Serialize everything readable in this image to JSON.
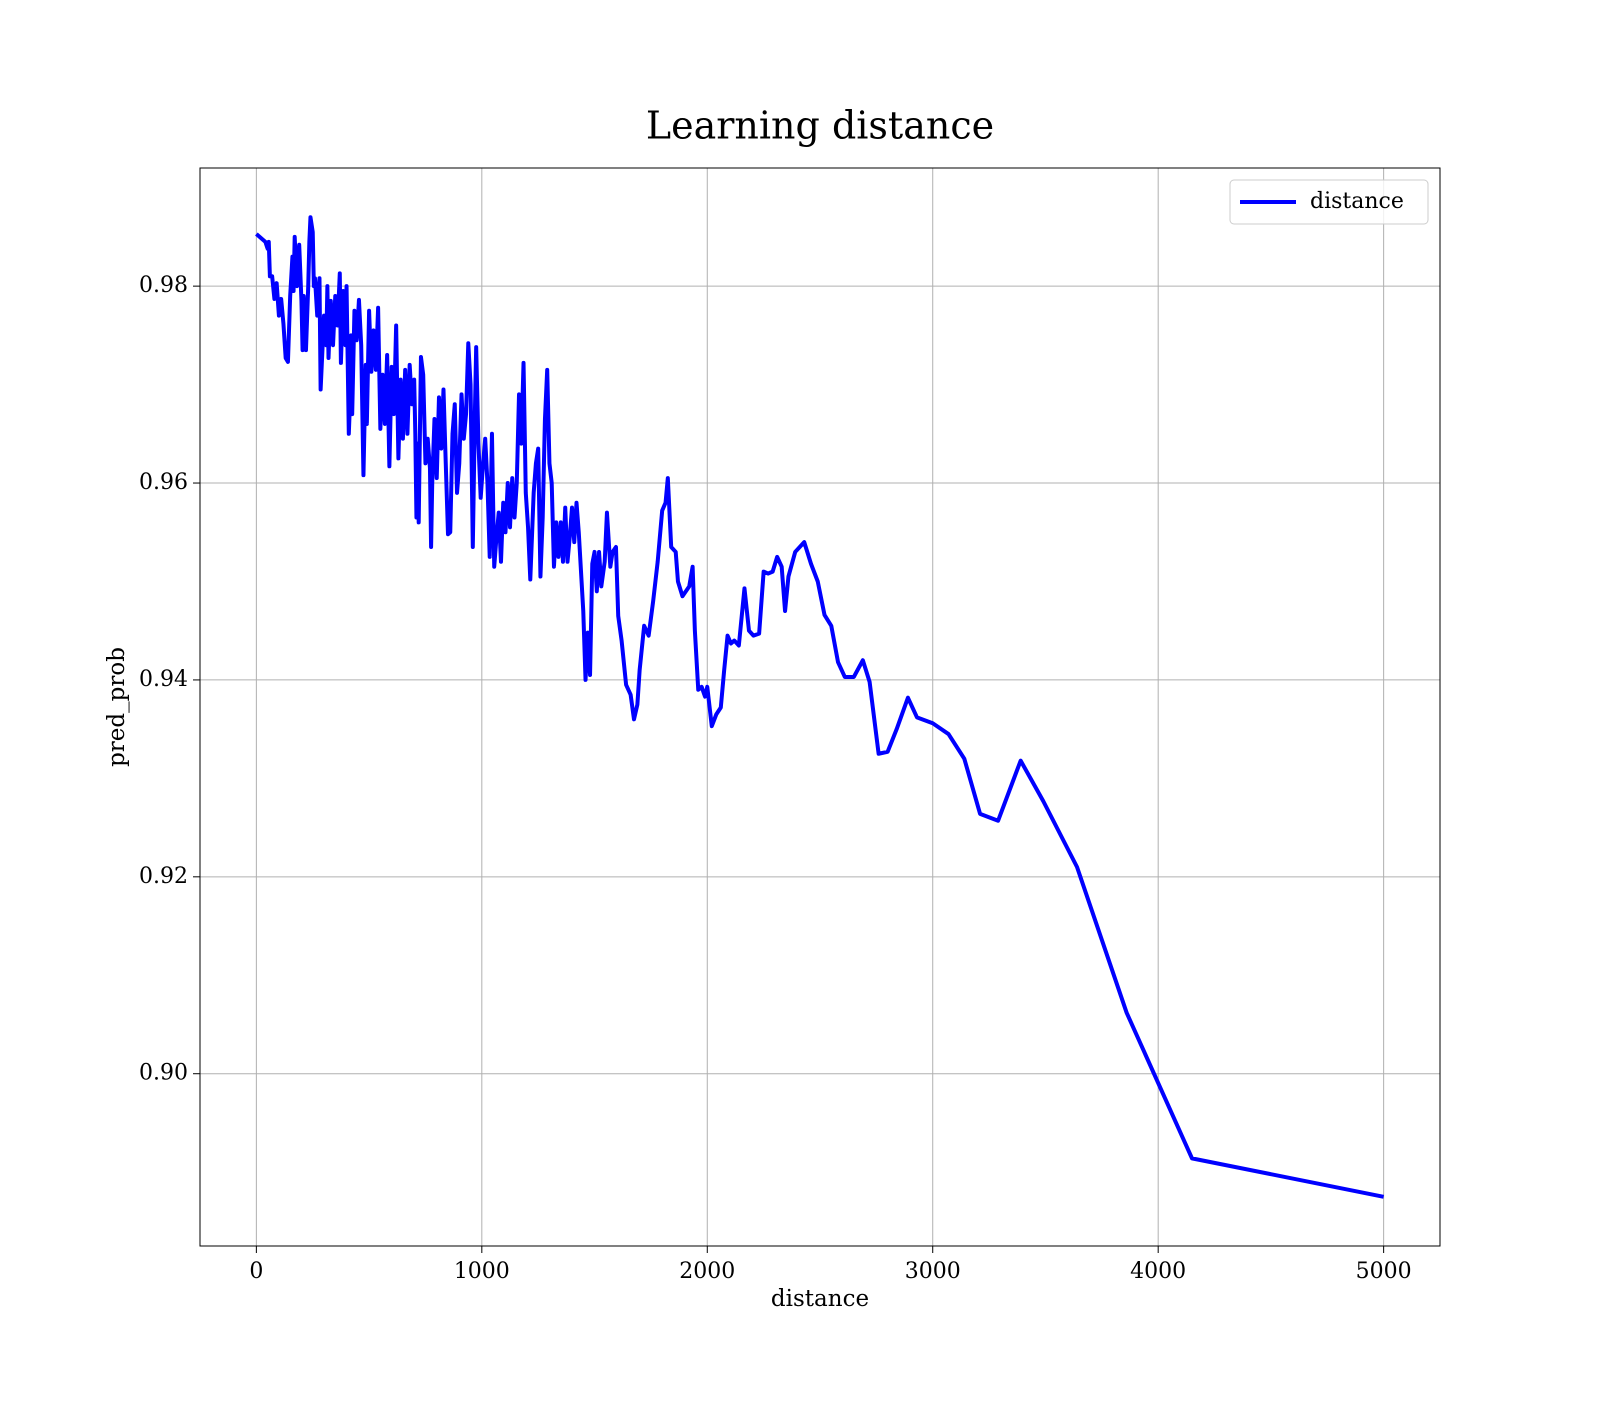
{
  "chart_data": {
    "type": "line",
    "title": "Learning distance",
    "x_label": "distance",
    "y_label": "pred_prob",
    "xlim": [
      -250,
      5250
    ],
    "ylim": [
      0.8825,
      0.992
    ],
    "xticks": [
      0,
      1000,
      2000,
      3000,
      4000,
      5000
    ],
    "yticks": [
      {
        "value": 0.9,
        "label": "0.90"
      },
      0.92,
      0.94,
      0.96,
      0.98
    ],
    "grid": true,
    "legend": "upper right",
    "x": [
      0,
      40,
      50,
      55,
      60,
      70,
      80,
      90,
      100,
      110,
      120,
      130,
      140,
      150,
      160,
      165,
      170,
      180,
      190,
      200,
      205,
      210,
      220,
      230,
      235,
      240,
      250,
      255,
      260,
      270,
      280,
      285,
      290,
      300,
      310,
      315,
      320,
      330,
      340,
      350,
      360,
      370,
      375,
      385,
      395,
      400,
      410,
      415,
      420,
      425,
      435,
      445,
      455,
      465,
      475,
      485,
      490,
      500,
      510,
      520,
      530,
      540,
      550,
      560,
      570,
      580,
      590,
      600,
      610,
      620,
      630,
      640,
      650,
      660,
      670,
      680,
      690,
      700,
      705,
      710,
      715,
      720,
      730,
      740,
      750,
      760,
      770,
      775,
      780,
      790,
      800,
      810,
      820,
      830,
      840,
      850,
      860,
      870,
      880,
      890,
      900,
      910,
      920,
      930,
      940,
      950,
      960,
      970,
      975,
      985,
      995,
      1005,
      1015,
      1025,
      1035,
      1045,
      1055,
      1065,
      1075,
      1085,
      1095,
      1105,
      1115,
      1125,
      1135,
      1145,
      1155,
      1165,
      1175,
      1185,
      1195,
      1205,
      1215,
      1230,
      1240,
      1250,
      1260,
      1270,
      1280,
      1290,
      1300,
      1310,
      1320,
      1330,
      1340,
      1350,
      1360,
      1370,
      1380,
      1390,
      1400,
      1410,
      1420,
      1430,
      1450,
      1460,
      1470,
      1480,
      1490,
      1500,
      1510,
      1520,
      1530,
      1545,
      1555,
      1570,
      1580,
      1595,
      1605,
      1620,
      1640,
      1660,
      1675,
      1690,
      1700,
      1720,
      1740,
      1760,
      1780,
      1800,
      1815,
      1825,
      1840,
      1860,
      1870,
      1890,
      1920,
      1935,
      1945,
      1960,
      1975,
      1990,
      2000,
      2020,
      2040,
      2060,
      2075,
      2090,
      2105,
      2120,
      2140,
      2165,
      2185,
      2205,
      2230,
      2250,
      2270,
      2290,
      2310,
      2330,
      2345,
      2360,
      2390,
      2430,
      2460,
      2490,
      2520,
      2550,
      2580,
      2610,
      2650,
      2690,
      2720,
      2760,
      2800,
      2840,
      2890,
      2930,
      3000,
      3070,
      3140,
      3210,
      3290,
      3390,
      3490,
      3640,
      3860,
      4150,
      5000
    ],
    "series": [
      {
        "name": "distance",
        "color": "#0000ff",
        "values": [
          0.9853,
          0.9845,
          0.9838,
          0.9845,
          0.981,
          0.981,
          0.9787,
          0.9803,
          0.977,
          0.9787,
          0.9762,
          0.9727,
          0.9723,
          0.979,
          0.983,
          0.9795,
          0.985,
          0.98,
          0.9842,
          0.9785,
          0.9735,
          0.979,
          0.9735,
          0.98,
          0.9845,
          0.987,
          0.9855,
          0.98,
          0.9808,
          0.977,
          0.9808,
          0.9695,
          0.972,
          0.977,
          0.974,
          0.98,
          0.9727,
          0.9785,
          0.974,
          0.979,
          0.976,
          0.9813,
          0.9722,
          0.9795,
          0.974,
          0.98,
          0.965,
          0.968,
          0.975,
          0.967,
          0.9775,
          0.9745,
          0.9786,
          0.974,
          0.9608,
          0.972,
          0.966,
          0.9775,
          0.9713,
          0.9755,
          0.9715,
          0.9778,
          0.9655,
          0.971,
          0.966,
          0.973,
          0.9617,
          0.9718,
          0.967,
          0.976,
          0.9625,
          0.9705,
          0.9645,
          0.9715,
          0.965,
          0.972,
          0.968,
          0.9705,
          0.965,
          0.9565,
          0.964,
          0.956,
          0.9728,
          0.971,
          0.962,
          0.9645,
          0.9615,
          0.9535,
          0.96,
          0.9665,
          0.9605,
          0.9687,
          0.9635,
          0.9695,
          0.962,
          0.9548,
          0.955,
          0.965,
          0.968,
          0.959,
          0.962,
          0.969,
          0.9645,
          0.967,
          0.9742,
          0.97,
          0.9535,
          0.968,
          0.9738,
          0.964,
          0.9585,
          0.9618,
          0.9645,
          0.96,
          0.9525,
          0.965,
          0.9515,
          0.9545,
          0.957,
          0.952,
          0.958,
          0.955,
          0.96,
          0.9555,
          0.9605,
          0.9565,
          0.96,
          0.969,
          0.964,
          0.9722,
          0.959,
          0.9555,
          0.9502,
          0.959,
          0.962,
          0.9635,
          0.9505,
          0.9565,
          0.9665,
          0.9715,
          0.962,
          0.96,
          0.9515,
          0.956,
          0.9525,
          0.956,
          0.952,
          0.9575,
          0.952,
          0.9545,
          0.9575,
          0.954,
          0.958,
          0.955,
          0.947,
          0.94,
          0.9448,
          0.9405,
          0.9518,
          0.953,
          0.949,
          0.953,
          0.9495,
          0.952,
          0.957,
          0.9515,
          0.953,
          0.9535,
          0.9465,
          0.944,
          0.9395,
          0.9385,
          0.936,
          0.9375,
          0.941,
          0.9455,
          0.9445,
          0.948,
          0.952,
          0.9572,
          0.958,
          0.9605,
          0.9535,
          0.953,
          0.95,
          0.9485,
          0.9495,
          0.9515,
          0.945,
          0.939,
          0.9393,
          0.9383,
          0.9393,
          0.9353,
          0.9365,
          0.9372,
          0.941,
          0.9445,
          0.9437,
          0.944,
          0.9435,
          0.9493,
          0.945,
          0.9445,
          0.9447,
          0.951,
          0.9508,
          0.951,
          0.9525,
          0.9515,
          0.947,
          0.9505,
          0.953,
          0.954,
          0.9518,
          0.95,
          0.9466,
          0.9455,
          0.9418,
          0.9403,
          0.9403,
          0.942,
          0.9398,
          0.9325,
          0.9327,
          0.935,
          0.9382,
          0.9362,
          0.9356,
          0.9345,
          0.932,
          0.9264,
          0.9257,
          0.9318,
          0.9277,
          0.921,
          0.9062,
          0.8914,
          0.8875
        ]
      }
    ]
  }
}
